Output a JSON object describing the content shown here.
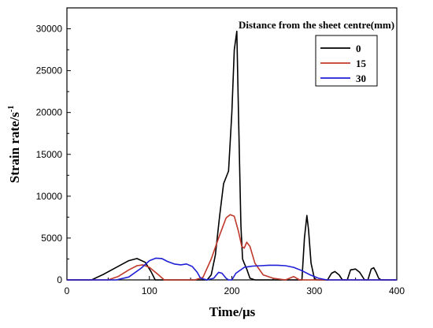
{
  "chart_data": {
    "type": "line",
    "title": "",
    "xlabel": "Time/μs",
    "ylabel": "Strain rate/s",
    "ylabel_superscript": "-1",
    "xlim": [
      0,
      400
    ],
    "ylim": [
      0,
      32500
    ],
    "xticks": [
      0,
      100,
      200,
      300,
      400
    ],
    "yticks": [
      0,
      5000,
      10000,
      15000,
      20000,
      25000,
      30000
    ],
    "grid": false,
    "legend": {
      "title": "Distance from the sheet centre(mm)",
      "placement": "top-right"
    },
    "series": [
      {
        "name": "0",
        "color": "#000000",
        "x": [
          0,
          30,
          45,
          60,
          75,
          85,
          95,
          102,
          107,
          170,
          175,
          180,
          185,
          190,
          196,
          200,
          203,
          206,
          208,
          211,
          213,
          215,
          218,
          222,
          228,
          285,
          288,
          291,
          293,
          296,
          300,
          303,
          316,
          321,
          325,
          330,
          334,
          340,
          344,
          350,
          355,
          361,
          365,
          369,
          372,
          375,
          378,
          381,
          400
        ],
        "y": [
          0,
          0,
          700,
          1500,
          2300,
          2550,
          2100,
          1000,
          0,
          0,
          600,
          3000,
          7500,
          11500,
          13000,
          20000,
          27500,
          29700,
          20000,
          6500,
          2500,
          2000,
          1300,
          200,
          0,
          0,
          5000,
          7700,
          6000,
          2000,
          200,
          0,
          0,
          800,
          1000,
          600,
          0,
          0,
          1200,
          1300,
          900,
          0,
          0,
          1300,
          1450,
          900,
          200,
          0,
          0
        ]
      },
      {
        "name": "15",
        "color": "#c0392b",
        "x": [
          0,
          50,
          62,
          75,
          85,
          92,
          100,
          110,
          118,
          125,
          135,
          145,
          155,
          165,
          175,
          185,
          193,
          198,
          203,
          208,
          212,
          215,
          218,
          222,
          228,
          238,
          250,
          265,
          275,
          282,
          400
        ],
        "y": [
          0,
          0,
          400,
          1200,
          1700,
          1800,
          1500,
          700,
          0,
          0,
          0,
          0,
          0,
          300,
          2500,
          5300,
          7400,
          7800,
          7600,
          5800,
          4000,
          3800,
          4500,
          4000,
          2000,
          600,
          200,
          0,
          400,
          0,
          0
        ]
      },
      {
        "name": "30",
        "color": "#1f1fd6",
        "x": [
          0,
          60,
          75,
          90,
          100,
          108,
          115,
          122,
          130,
          138,
          145,
          152,
          158,
          162,
          170,
          178,
          184,
          188,
          193,
          196,
          200,
          205,
          215,
          225,
          235,
          245,
          255,
          265,
          275,
          285,
          295,
          305,
          315,
          400
        ],
        "y": [
          0,
          0,
          350,
          1400,
          2300,
          2600,
          2550,
          2200,
          1900,
          1800,
          1900,
          1600,
          900,
          200,
          0,
          200,
          900,
          800,
          200,
          0,
          0,
          800,
          1500,
          1650,
          1700,
          1750,
          1750,
          1700,
          1500,
          1100,
          600,
          200,
          0,
          0
        ]
      }
    ]
  }
}
